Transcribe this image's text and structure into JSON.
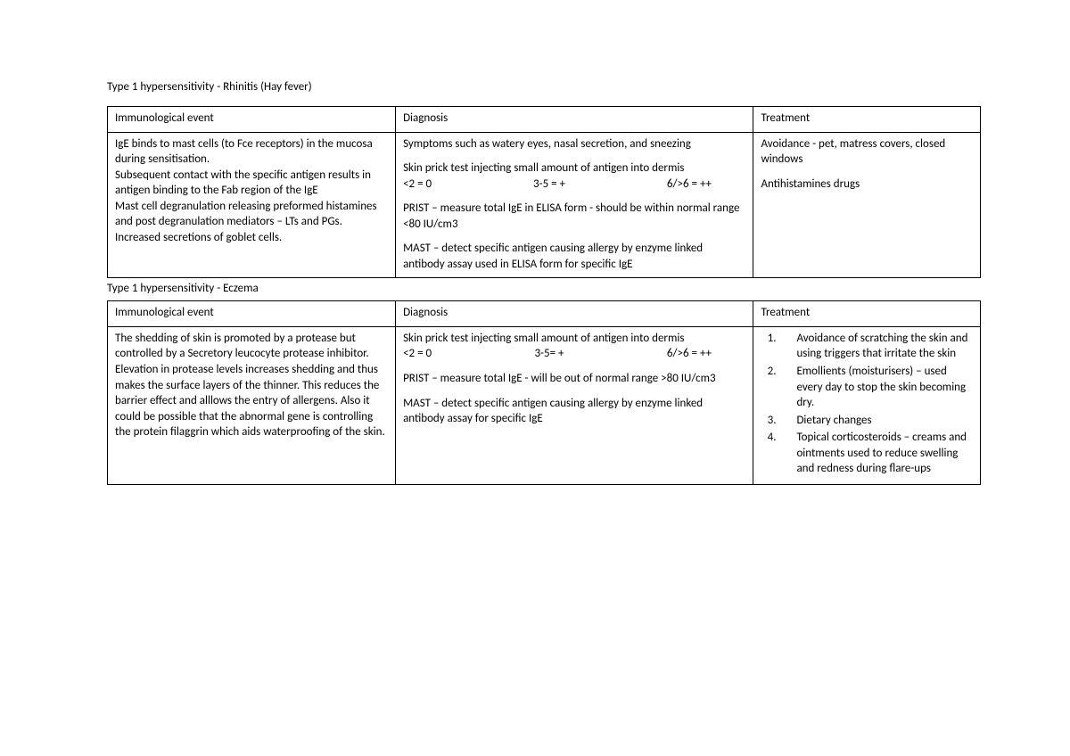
{
  "section1": {
    "title": "Type 1 hypersensitivity - Rhinitis (Hay fever)",
    "headers": {
      "h1": "Immunological event",
      "h2": "Diagnosis",
      "h3": "Treatment"
    },
    "col1": {
      "p1": "IgE binds to mast cells (to Fce receptors) in the mucosa during sensitisation.",
      "p2": "Subsequent contact with the specific antigen results in antigen binding to the Fab region of the IgE",
      "p3": "Mast cell degranulation releasing preformed histamines and post degranulation mediators – LTs and PGs.",
      "p4": "Increased secretions of goblet cells."
    },
    "col2": {
      "p1": "Symptoms such as watery eyes, nasal secretion, and sneezing",
      "p2": "Skin prick test injecting small amount of antigen into dermis",
      "scale": {
        "a": "<2 = 0",
        "b": "3-5 = +",
        "c": "6/>6 = ++"
      },
      "p3": "PRIST – measure total IgE in ELISA form - should be within normal range <80 IU/cm3",
      "p4": "MAST – detect specific antigen causing allergy by enzyme linked antibody assay used in ELISA form for specific IgE"
    },
    "col3": {
      "p1": "Avoidance - pet, matress covers, closed windows",
      "p2": "Antihistamines drugs"
    }
  },
  "section2": {
    "title": "Type 1 hypersensitivity - Eczema",
    "headers": {
      "h1": "Immunological event",
      "h2": "Diagnosis",
      "h3": "Treatment"
    },
    "col1": {
      "p1": "The shedding of skin is promoted by a protease but controlled by a Secretory leucocyte protease inhibitor. Elevation in protease levels increases shedding and thus makes the surface layers of the thinner. This reduces the barrier effect and alllows the entry of allergens. Also it could be possible that the abnormal gene is controlling the protein filaggrin which aids waterproofing of the skin."
    },
    "col2": {
      "p1": "Skin prick test injecting small amount of antigen into dermis",
      "scale": {
        "a": "<2 = 0",
        "b": "3-5= +",
        "c": "6/>6 = ++"
      },
      "p2": "PRIST – measure total IgE - will be out of normal range >80 IU/cm3",
      "p3": "MAST – detect specific antigen causing allergy by enzyme linked antibody assay for specific IgE"
    },
    "col3": {
      "items": {
        "i1": "Avoidance of scratching the skin and using triggers that irritate the skin",
        "i2": "Emollients (moisturisers) – used every day to stop the skin becoming dry.",
        "i3": "Dietary changes",
        "i4": "Topical corticosteroids – creams and ointments used to reduce swelling and redness during flare-ups"
      }
    }
  },
  "styles": {
    "background": "#ffffff",
    "text_color": "#000000",
    "border_color": "#000000",
    "font_size_pt": 10,
    "font_family": "Calibri"
  }
}
